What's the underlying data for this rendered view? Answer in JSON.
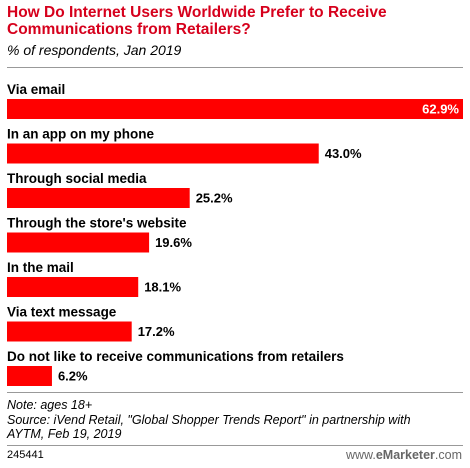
{
  "title": "How Do Internet Users Worldwide Prefer to Receive Communications from Retailers?",
  "subtitle": "% of respondents, Jan 2019",
  "colors": {
    "title": "#d6001c",
    "bar": "#ff0000",
    "rule": "#999999",
    "brand": "#666666"
  },
  "chart_data": {
    "type": "bar",
    "orientation": "horizontal",
    "categories": [
      "Via email",
      "In an app on my phone",
      "Through social media",
      "Through the store's website",
      "In the mail",
      "Via text message",
      "Do not like to receive communications from retailers"
    ],
    "values": [
      62.9,
      43.0,
      25.2,
      19.6,
      18.1,
      17.2,
      6.2
    ],
    "value_labels": [
      "62.9%",
      "43.0%",
      "25.2%",
      "19.6%",
      "18.1%",
      "17.2%",
      "6.2%"
    ],
    "unit": "%",
    "xlim": [
      0,
      62.9
    ],
    "grid": false,
    "legend": "none"
  },
  "footer": {
    "note": "Note: ages 18+",
    "source_line1": "Source: iVend Retail, \"Global Shopper Trends Report\" in partnership with",
    "source_line2": "AYTM, Feb 19, 2019",
    "chart_id": "245441",
    "brand_prefix": "www.",
    "brand_name": "eMarketer",
    "brand_suffix": ".com"
  }
}
